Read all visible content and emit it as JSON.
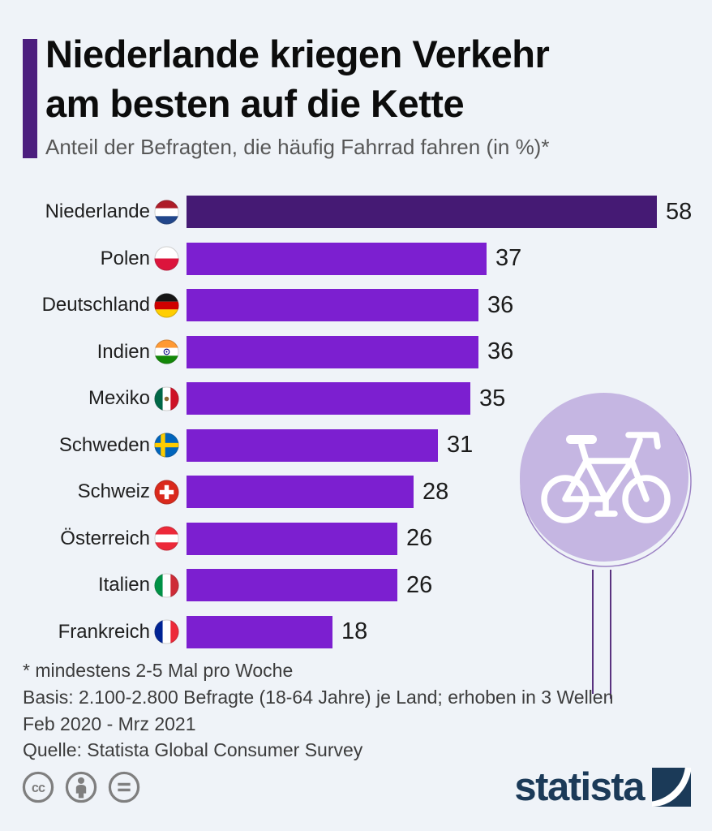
{
  "header": {
    "title_line1": "Niederlande kriegen Verkehr",
    "title_line2": "am besten auf die Kette",
    "subtitle": "Anteil der Befragten, die häufig Fahrrad fahren (in %)*"
  },
  "chart_data": {
    "type": "bar",
    "orientation": "horizontal",
    "title": "Niederlande kriegen Verkehr am besten auf die Kette",
    "subtitle": "Anteil der Befragten, die häufig Fahrrad fahren (in %)*",
    "categories": [
      "Niederlande",
      "Polen",
      "Deutschland",
      "Indien",
      "Mexiko",
      "Schweden",
      "Schweiz",
      "Österreich",
      "Italien",
      "Frankreich"
    ],
    "values": [
      58,
      37,
      36,
      36,
      35,
      31,
      28,
      26,
      26,
      18
    ],
    "flags": [
      "nl",
      "pl",
      "de",
      "in",
      "mx",
      "se",
      "ch",
      "at",
      "it",
      "fr"
    ],
    "highlight_index": 0,
    "xlim": [
      0,
      58
    ],
    "grid": false,
    "legend": "none",
    "value_labels_shown": true,
    "colors": {
      "bar": "#7c1fd0",
      "highlight_bar": "#451a74"
    }
  },
  "footnotes": {
    "line1": "* mindestens 2-5 Mal pro Woche",
    "line2": "Basis: 2.100-2.800 Befragte (18-64 Jahre) je Land; erhoben in 3 Wellen",
    "line3": "Feb 2020 - Mrz 2021"
  },
  "source": "Quelle: Statista Global Consumer Survey",
  "branding": {
    "logo_text": "statista"
  },
  "license": {
    "icons": [
      "cc",
      "attribution",
      "no-derivatives"
    ]
  },
  "colors": {
    "background": "#eff3f8",
    "accent": "#4c1e7e",
    "title_text": "#0c0c0c",
    "subtitle_text": "#575757",
    "footnote_text": "#3c3c3c",
    "brand_navy": "#1b3a58",
    "license_gray": "#7f7f7f",
    "sign_fill": "#c5b6e2",
    "sign_ring": "#9c82c4",
    "sign_post": "#5a3380"
  }
}
